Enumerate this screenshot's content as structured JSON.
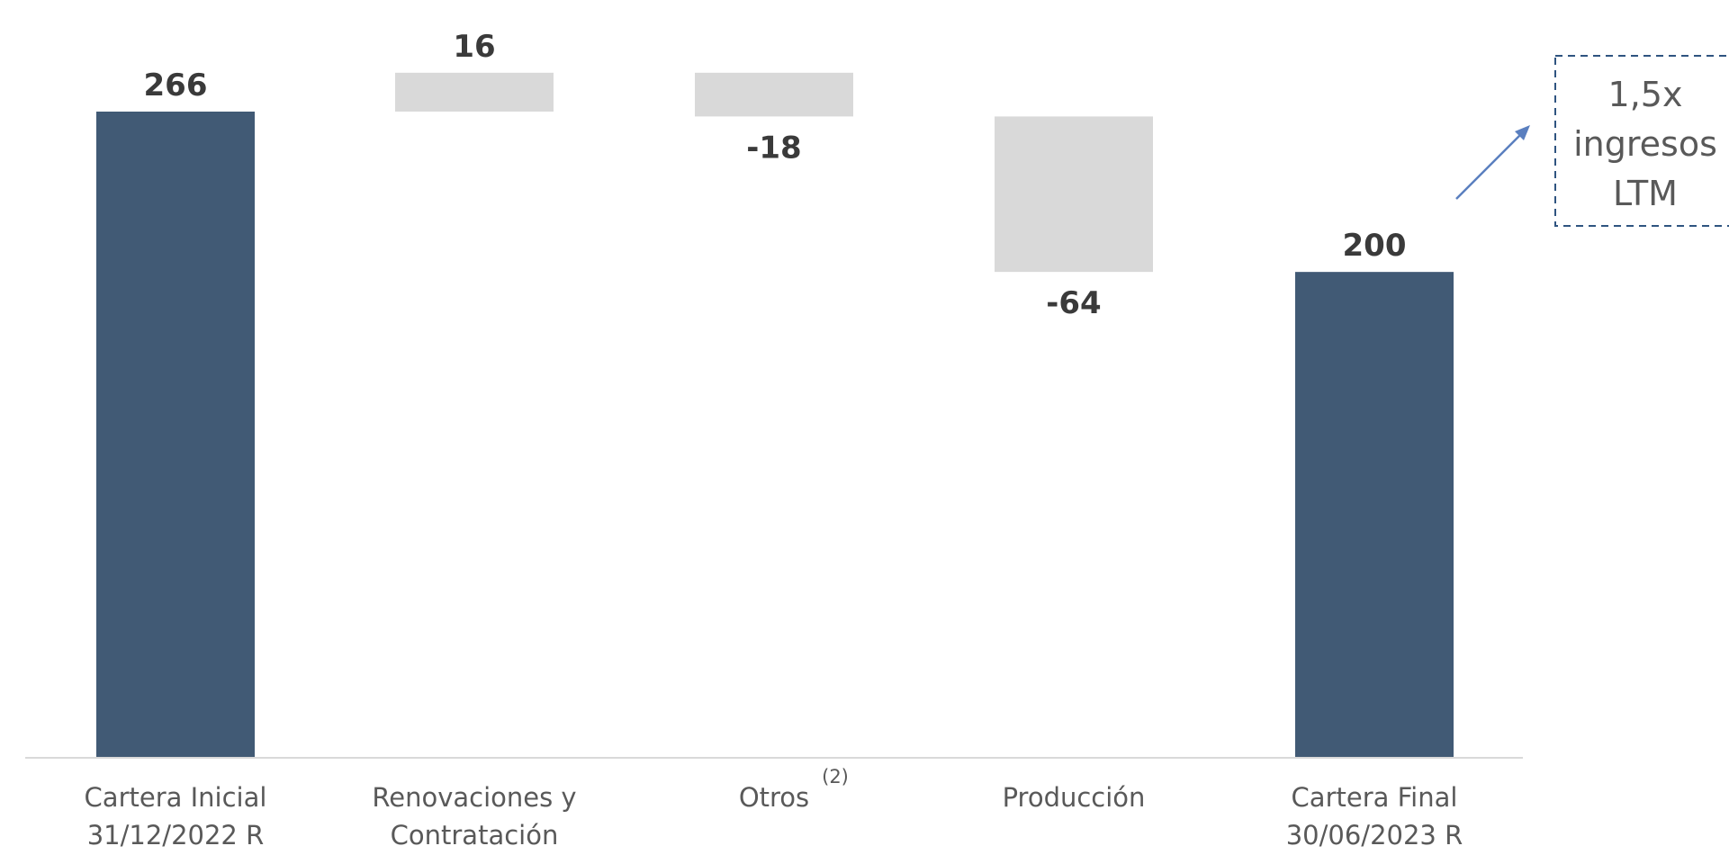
{
  "chart_data": {
    "type": "bar",
    "variant": "waterfall",
    "title": "",
    "xlabel": "",
    "ylabel": "",
    "ylim": [
      0,
      266
    ],
    "grid": false,
    "legend": "none",
    "categories": [
      [
        "Cartera Inicial",
        "31/12/2022 R"
      ],
      [
        "Renovaciones y",
        "Contratación"
      ],
      [
        "Otros"
      ],
      [
        "Producción"
      ],
      [
        "Cartera Final",
        "30/06/2023 R"
      ]
    ],
    "category_superscripts": [
      "",
      "",
      "(2)",
      "",
      ""
    ],
    "values": [
      266,
      16,
      -18,
      -64,
      200
    ],
    "value_labels": [
      "266",
      "16",
      "-18",
      "-64",
      "200"
    ],
    "kinds": [
      "total",
      "delta",
      "delta",
      "delta",
      "total"
    ],
    "colors": {
      "total": "#415a75",
      "delta": "#d9d9d9",
      "axis": "#d9d9d9"
    },
    "annotation": {
      "lines": [
        "1,5x",
        "ingresos",
        "LTM"
      ],
      "border_color": "#2f5480",
      "arrow_color": "#5a7fbf"
    }
  }
}
